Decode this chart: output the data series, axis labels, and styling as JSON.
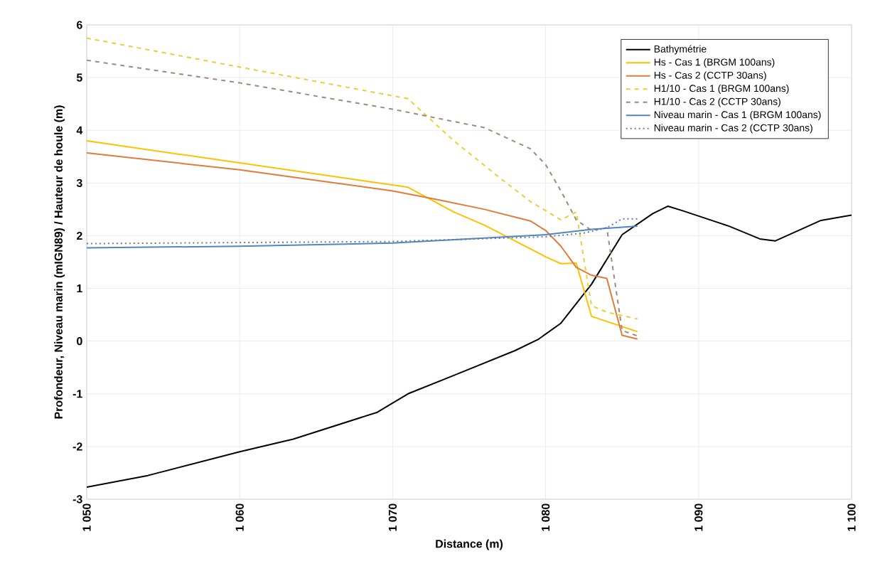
{
  "chart_data": {
    "type": "line",
    "xlabel": "Distance (m)",
    "ylabel": "Profondeur, Niveau marin (mIGN89) / Hauteur de houle (m)",
    "xlim": [
      1050,
      1100
    ],
    "ylim": [
      -3,
      6
    ],
    "xticks": [
      {
        "value": 1050,
        "label": "1 050"
      },
      {
        "value": 1060,
        "label": "1 060"
      },
      {
        "value": 1070,
        "label": "1 070"
      },
      {
        "value": 1080,
        "label": "1 080"
      },
      {
        "value": 1090,
        "label": "1 090"
      },
      {
        "value": 1100,
        "label": "1 100"
      }
    ],
    "yticks": [
      -3,
      -2,
      -1,
      0,
      1,
      2,
      3,
      4,
      5,
      6
    ],
    "grid": true,
    "legend": "top right",
    "series": [
      {
        "name": "Bathymétrie",
        "color": "#000000",
        "line_style": "solid",
        "x": [
          1050,
          1054,
          1060,
          1063.5,
          1069,
          1071,
          1074,
          1078,
          1079.5,
          1081,
          1083,
          1085,
          1087,
          1088,
          1089,
          1092,
          1094,
          1095,
          1098,
          1100
        ],
        "values": [
          -2.77,
          -2.55,
          -2.1,
          -1.86,
          -1.35,
          -1.0,
          -0.65,
          -0.18,
          0.03,
          0.34,
          1.08,
          2.02,
          2.42,
          2.56,
          2.47,
          2.18,
          1.94,
          1.9,
          2.29,
          2.39
        ]
      },
      {
        "name": "Hs - Cas 1 (BRGM 100ans)",
        "color": "#ffc000",
        "line_style": "solid",
        "x": [
          1050,
          1071,
          1074,
          1076,
          1080,
          1081,
          1082,
          1083,
          1086
        ],
        "values": [
          3.8,
          2.92,
          2.45,
          2.2,
          1.6,
          1.47,
          1.48,
          0.47,
          0.18
        ]
      },
      {
        "name": "Hs - Cas 2 (CCTP 30ans)",
        "color": "#e07b39",
        "line_style": "solid",
        "x": [
          1050,
          1060,
          1070,
          1073,
          1076,
          1079,
          1080,
          1081,
          1082,
          1083,
          1084,
          1085,
          1086
        ],
        "values": [
          3.57,
          3.25,
          2.85,
          2.68,
          2.5,
          2.28,
          2.1,
          1.8,
          1.4,
          1.25,
          1.19,
          0.11,
          0.04
        ]
      },
      {
        "name": "H1/10 - Cas 1 (BRGM 100ans)",
        "color": "#e8cf3a",
        "line_style": "dashed",
        "x": [
          1050,
          1060,
          1071,
          1074,
          1077,
          1079,
          1081,
          1082,
          1083,
          1084,
          1086
        ],
        "values": [
          5.75,
          5.2,
          4.6,
          3.8,
          3.1,
          2.65,
          2.3,
          2.45,
          0.67,
          0.55,
          0.42
        ]
      },
      {
        "name": "H1/10 - Cas 2 (CCTP 30ans)",
        "color": "#9e8a78",
        "line_style": "dashed",
        "x": [
          1050,
          1060,
          1070,
          1076,
          1079,
          1080,
          1081,
          1082,
          1083,
          1084,
          1085,
          1086
        ],
        "values": [
          5.33,
          4.9,
          4.4,
          4.05,
          3.65,
          3.35,
          2.85,
          2.3,
          2.1,
          2.15,
          0.2,
          0.1
        ]
      },
      {
        "name": "Niveau marin - Cas 1 (BRGM 100ans)",
        "color": "#4f86c6",
        "line_style": "solid",
        "x": [
          1050,
          1060,
          1070,
          1080,
          1083,
          1086
        ],
        "values": [
          1.77,
          1.8,
          1.86,
          2.02,
          2.12,
          2.18
        ]
      },
      {
        "name": "Niveau marin - Cas 2 (CCTP 30ans)",
        "color": "#6b7b8c",
        "line_style": "dotted",
        "x": [
          1050,
          1060,
          1070,
          1080,
          1082.5,
          1084,
          1085,
          1086
        ],
        "values": [
          1.85,
          1.87,
          1.89,
          1.98,
          2.05,
          2.15,
          2.32,
          2.32
        ]
      }
    ]
  }
}
